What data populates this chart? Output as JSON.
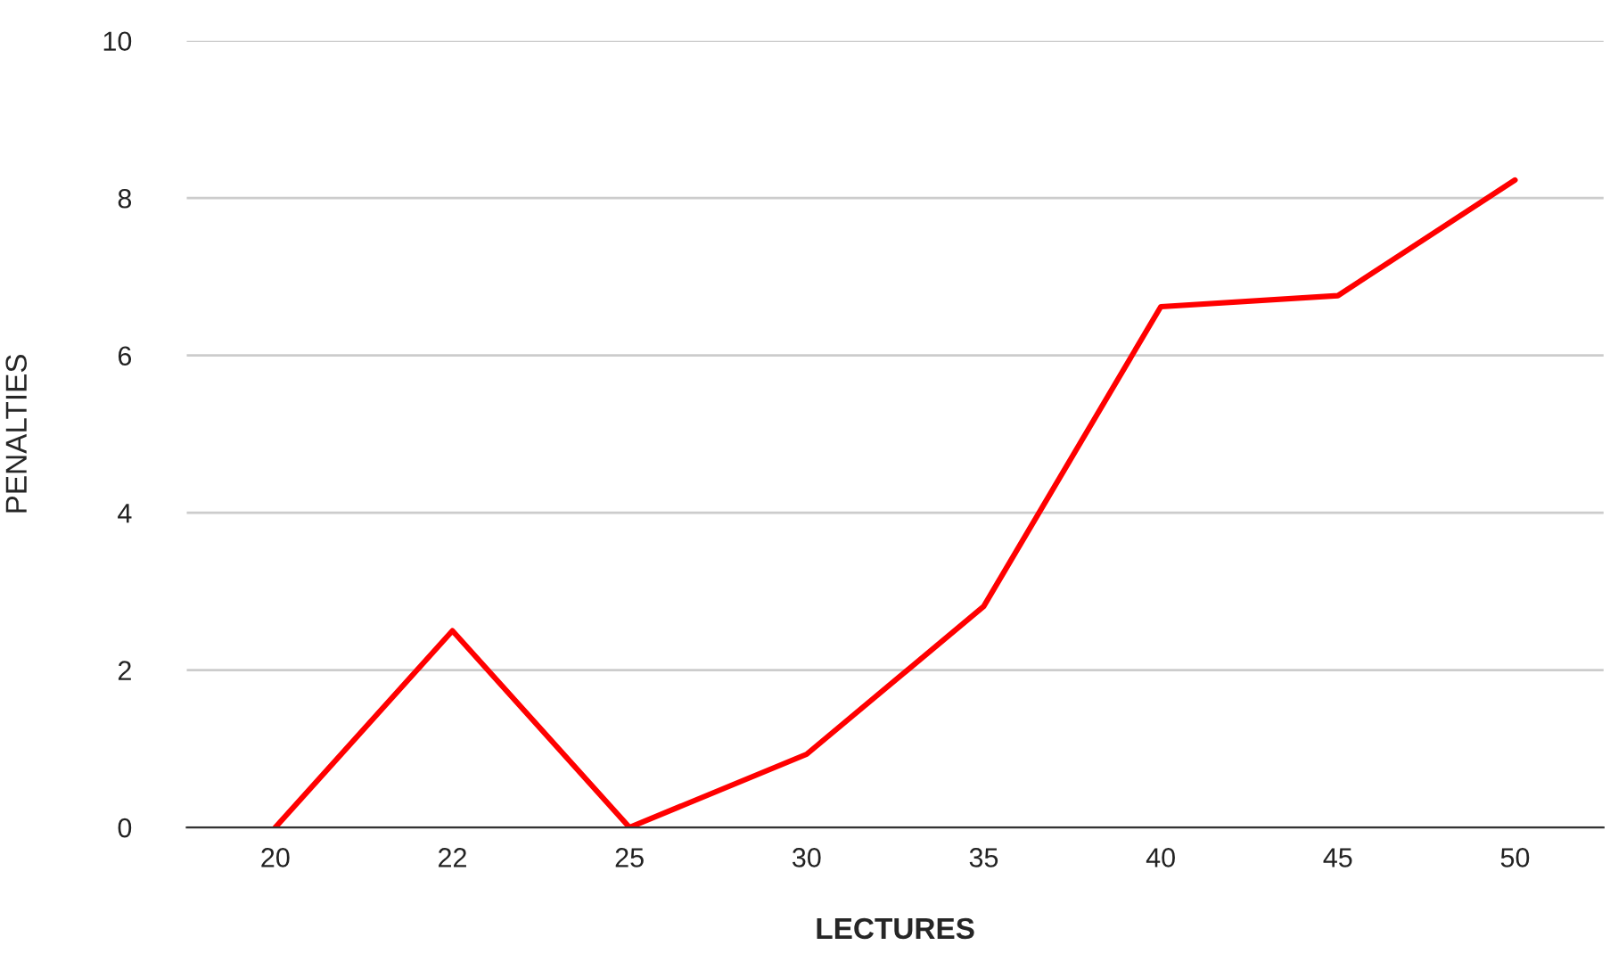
{
  "chart_data": {
    "type": "line",
    "xlabel": "LECTURES",
    "ylabel": "PENALTIES",
    "categories": [
      "20",
      "22",
      "25",
      "30",
      "35",
      "40",
      "45",
      "50"
    ],
    "series": [
      {
        "color": "#ff0000",
        "values": [
          0,
          2.5,
          0,
          0.93,
          2.81,
          6.62,
          6.76,
          8.23
        ]
      }
    ],
    "ylim": [
      0,
      10
    ],
    "yticks": [
      0,
      2,
      4,
      6,
      8,
      10
    ],
    "grid": "y",
    "marker": "none",
    "line_style": "solid"
  }
}
